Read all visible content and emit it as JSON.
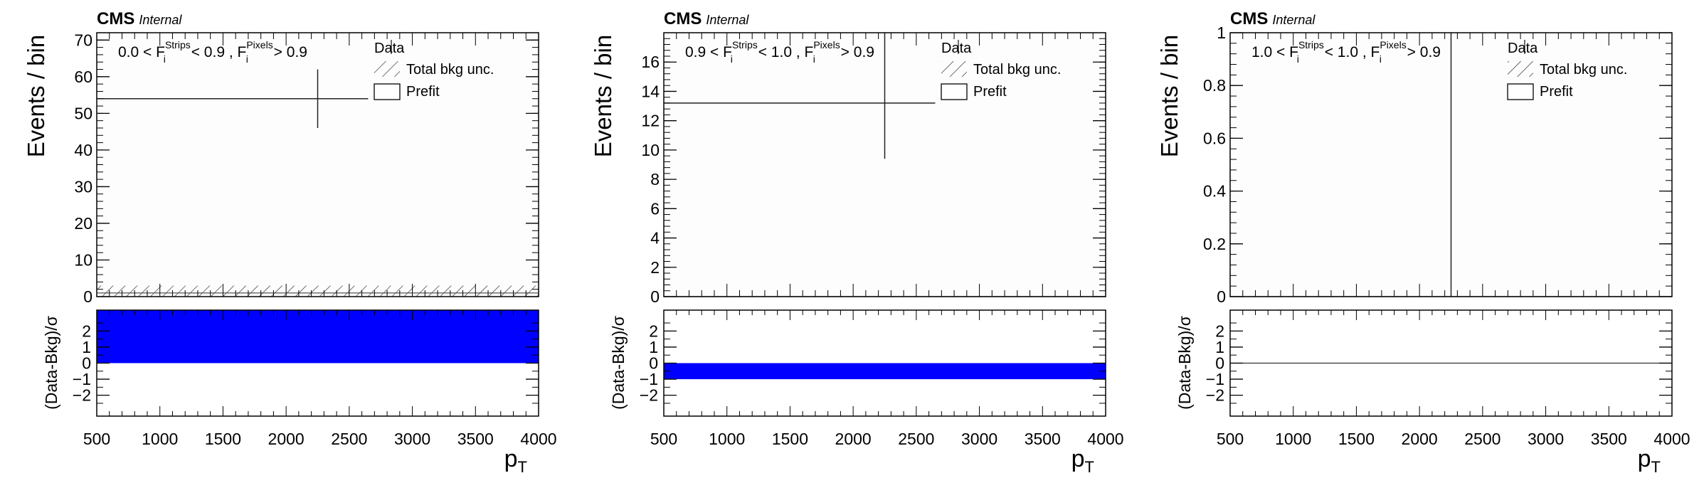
{
  "page": {
    "background": "#ffffff"
  },
  "chart_data": [
    {
      "type": "bar",
      "experiment": "CMS",
      "status": "Internal",
      "annotation": {
        "lo": "0.0",
        "hi": "0.9",
        "pix": "0.9",
        "pre": "0.0 < F",
        "sub": "i",
        "sup1": "Strips",
        "mid": " < 0.9 , F",
        "sup2": "Pixels",
        "post": " > 0.9"
      },
      "legend": {
        "data": "Data",
        "unc": "Total bkg unc.",
        "prefit": "Prefit"
      },
      "xlabel": "p",
      "xlabel_sub": "T",
      "ylabel": "Events / bin",
      "ratio_ylabel": "(Data-Bkg)/σ",
      "xlim": [
        500,
        4000
      ],
      "ylim": [
        0,
        72
      ],
      "yticks": [
        "0",
        "10",
        "20",
        "30",
        "40",
        "50",
        "60",
        "70"
      ],
      "ytick_values": [
        0,
        10,
        20,
        30,
        40,
        50,
        60,
        70
      ],
      "xticks": [
        "500",
        "1000",
        "1500",
        "2000",
        "2500",
        "3000",
        "3500",
        "4000"
      ],
      "xtick_values": [
        500,
        1000,
        1500,
        2000,
        2500,
        3000,
        3500,
        4000
      ],
      "prefit": {
        "x": [
          500,
          4000
        ],
        "y": 1.0
      },
      "unc_band": {
        "x": [
          500,
          4000
        ],
        "low": 0.0,
        "high": 3.0
      },
      "data": {
        "x_range": [
          500,
          2650
        ],
        "x": 2250,
        "y": 54,
        "err_low": 8,
        "err_high": 8
      },
      "ratio": {
        "ylim": [
          -3.3,
          3.3
        ],
        "yticks": [
          "−2",
          "−1",
          "0",
          "1",
          "2"
        ],
        "ytick_values": [
          -2,
          -1,
          0,
          1,
          2
        ],
        "band": {
          "x": [
            500,
            4000
          ],
          "low": 0.0,
          "high": 3.3
        },
        "line": false
      }
    },
    {
      "type": "bar",
      "experiment": "CMS",
      "status": "Internal",
      "annotation": {
        "pre": "0.9 < F",
        "sub": "i",
        "sup1": "Strips",
        "mid": " < 1.0 , F",
        "sup2": "Pixels",
        "post": " > 0.9"
      },
      "legend": {
        "data": "Data",
        "unc": "Total bkg unc.",
        "prefit": "Prefit"
      },
      "xlabel": "p",
      "xlabel_sub": "T",
      "ylabel": "Events / bin",
      "ratio_ylabel": "(Data-Bkg)/σ",
      "xlim": [
        500,
        4000
      ],
      "ylim": [
        0,
        18
      ],
      "yticks": [
        "0",
        "2",
        "4",
        "6",
        "8",
        "10",
        "12",
        "14",
        "16"
      ],
      "ytick_values": [
        0,
        2,
        4,
        6,
        8,
        10,
        12,
        14,
        16
      ],
      "xticks": [
        "500",
        "1000",
        "1500",
        "2000",
        "2500",
        "3000",
        "3500",
        "4000"
      ],
      "xtick_values": [
        500,
        1000,
        1500,
        2000,
        2500,
        3000,
        3500,
        4000
      ],
      "prefit": {
        "x": [
          500,
          4000
        ],
        "y": 0.0
      },
      "unc_band": {
        "x": [
          500,
          4000
        ],
        "low": 0.0,
        "high": 0.0
      },
      "data": {
        "x_range": [
          500,
          2650
        ],
        "x": 2250,
        "y": 13.2,
        "err_low": 3.8,
        "err_high": 4.8
      },
      "ratio": {
        "ylim": [
          -3.3,
          3.3
        ],
        "yticks": [
          "−2",
          "−1",
          "0",
          "1",
          "2"
        ],
        "ytick_values": [
          -2,
          -1,
          0,
          1,
          2
        ],
        "band": {
          "x": [
            500,
            4000
          ],
          "low": -1.0,
          "high": 0.0
        },
        "line": false
      }
    },
    {
      "type": "bar",
      "experiment": "CMS",
      "status": "Internal",
      "annotation": {
        "pre": "1.0 < F",
        "sub": "i",
        "sup1": "Strips",
        "mid": " < 1.0 , F",
        "sup2": "Pixels",
        "post": " > 0.9"
      },
      "legend": {
        "data": "Data",
        "unc": "Total bkg unc.",
        "prefit": "Prefit"
      },
      "xlabel": "p",
      "xlabel_sub": "T",
      "ylabel": "Events / bin",
      "ratio_ylabel": "(Data-Bkg)/σ",
      "xlim": [
        500,
        4000
      ],
      "ylim": [
        0,
        1
      ],
      "yticks": [
        "0",
        "0.2",
        "0.4",
        "0.6",
        "0.8",
        "1"
      ],
      "ytick_values": [
        0,
        0.2,
        0.4,
        0.6,
        0.8,
        1
      ],
      "xticks": [
        "500",
        "1000",
        "1500",
        "2000",
        "2500",
        "3000",
        "3500",
        "4000"
      ],
      "xtick_values": [
        500,
        1000,
        1500,
        2000,
        2500,
        3000,
        3500,
        4000
      ],
      "prefit": {
        "x": [
          500,
          4000
        ],
        "y": 0.0
      },
      "unc_band": {
        "x": [
          500,
          4000
        ],
        "low": 0.0,
        "high": 0.0
      },
      "data": {
        "vertical_line_x": 2250
      },
      "ratio": {
        "ylim": [
          -3.3,
          3.3
        ],
        "yticks": [
          "−2",
          "−1",
          "0",
          "1",
          "2"
        ],
        "ytick_values": [
          -2,
          -1,
          0,
          1,
          2
        ],
        "band": null,
        "line": true
      }
    }
  ]
}
